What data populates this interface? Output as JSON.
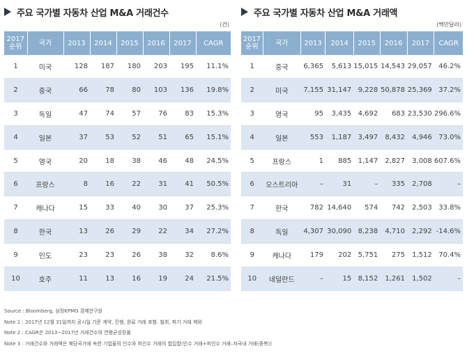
{
  "left": {
    "title": "주요 국가별 자동차 산업 M&A 거래건수",
    "unit": "(건)",
    "headers": [
      "2017\n순위",
      "국가",
      "2013",
      "2014",
      "2015",
      "2016",
      "2017",
      "CAGR"
    ],
    "rows": [
      [
        "1",
        "미국",
        "128",
        "187",
        "180",
        "203",
        "195",
        "11.1%"
      ],
      [
        "2",
        "중국",
        "66",
        "78",
        "80",
        "103",
        "136",
        "19.8%"
      ],
      [
        "3",
        "독일",
        "47",
        "74",
        "57",
        "76",
        "83",
        "15.3%"
      ],
      [
        "4",
        "일본",
        "37",
        "53",
        "52",
        "51",
        "65",
        "15.1%"
      ],
      [
        "5",
        "영국",
        "20",
        "18",
        "38",
        "46",
        "48",
        "24.5%"
      ],
      [
        "6",
        "프랑스",
        "8",
        "16",
        "22",
        "31",
        "41",
        "50.5%"
      ],
      [
        "7",
        "캐나다",
        "15",
        "33",
        "40",
        "30",
        "37",
        "25.3%"
      ],
      [
        "8",
        "한국",
        "13",
        "26",
        "29",
        "22",
        "34",
        "27.2%"
      ],
      [
        "9",
        "인도",
        "23",
        "23",
        "26",
        "38",
        "32",
        "8.6%"
      ],
      [
        "10",
        "호주",
        "11",
        "13",
        "16",
        "19",
        "24",
        "21.5%"
      ]
    ]
  },
  "right": {
    "title": "주요 국가별 자동차 산업 M&A 거래액",
    "unit": "(백만달러)",
    "headers": [
      "2017\n순위",
      "국가",
      "2013",
      "2014",
      "2015",
      "2016",
      "2017",
      "CAGR"
    ],
    "rows": [
      [
        "1",
        "중국",
        "6,365",
        "5,613",
        "15,015",
        "14,543",
        "29,057",
        "46.2%"
      ],
      [
        "2",
        "미국",
        "7,155",
        "31,147",
        "9,228",
        "50,878",
        "25,369",
        "37.2%"
      ],
      [
        "3",
        "영국",
        "95",
        "3,435",
        "4,692",
        "683",
        "23,530",
        "296.6%"
      ],
      [
        "4",
        "일본",
        "553",
        "1,187",
        "3,497",
        "8,432",
        "4,946",
        "73.0%"
      ],
      [
        "5",
        "프랑스",
        "1",
        "885",
        "1,147",
        "2,827",
        "3,008",
        "607.6%"
      ],
      [
        "6",
        "오스트리아",
        "–",
        "31",
        "–",
        "335",
        "2,708",
        "–"
      ],
      [
        "7",
        "한국",
        "782",
        "14,640",
        "574",
        "742",
        "2,503",
        "33.8%"
      ],
      [
        "8",
        "독일",
        "4,307",
        "30,090",
        "8,238",
        "4,710",
        "2,292",
        "-14.6%"
      ],
      [
        "9",
        "캐나다",
        "179",
        "202",
        "5,751",
        "275",
        "1,512",
        "70.4%"
      ],
      [
        "10",
        "네덜란드",
        "–",
        "15",
        "8,152",
        "1,261",
        "1,502",
        "–"
      ]
    ]
  },
  "notes": [
    "Source : Bloomberg, 삼정KPMG 경제연구원",
    "Note 1 : 2017년 12월 31일까지 공시일 기준 계약, 진행, 완료 거래 포함. 철회, 파기 거래 제외",
    "Note 2 : CAGR은 2013~2017년 거래건수의 연평균성장률",
    "Note 3 : 거래건수와 거래액은 해당국가에 속한 기업들의 인수와 피인수 거래의 합집합(인수 거래+피인수 거래–자국내 거래(중복))"
  ]
}
